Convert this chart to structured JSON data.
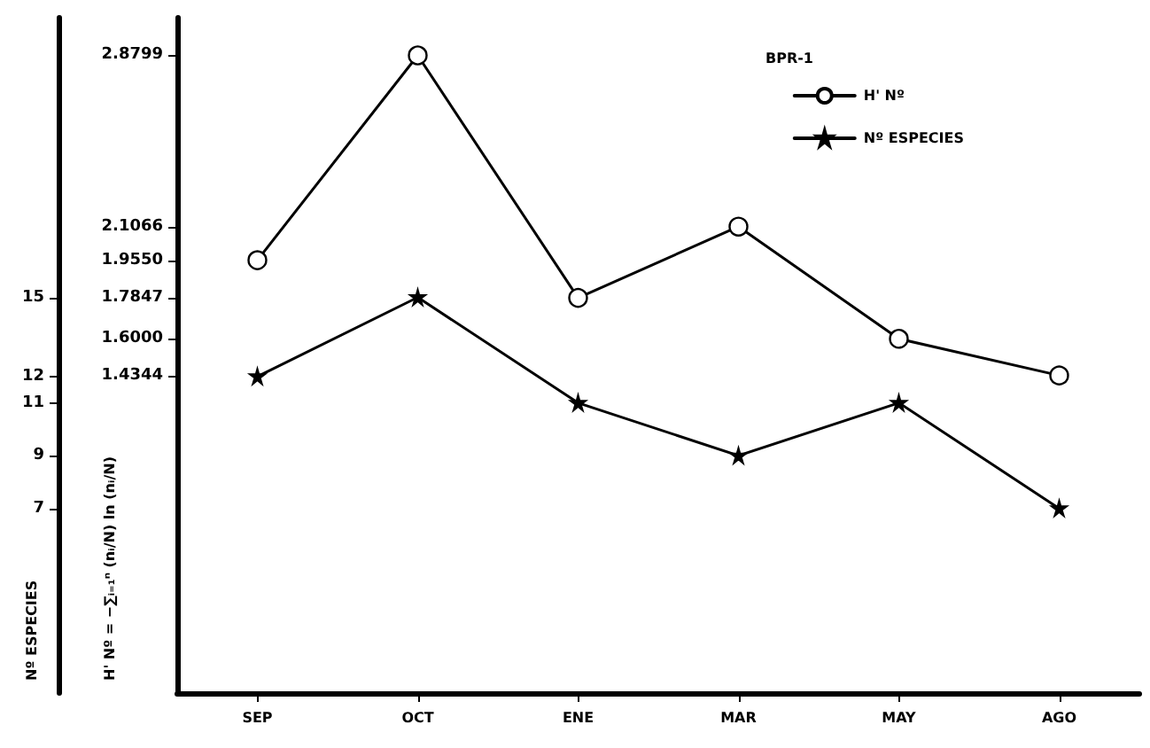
{
  "chart_data": {
    "type": "line",
    "categories": [
      "SEP",
      "OCT",
      "ENE",
      "MAR",
      "MAY",
      "AGO"
    ],
    "ylabel": "Nº ESPECIES",
    "y2label": "H' Nº = −∑ᵢ₌₁ⁿ (nᵢ/N) ln (nᵢ/N)",
    "legend_title": "BPR-1",
    "series": [
      {
        "name": "H' Nº",
        "color": "#000000",
        "axis": "y2",
        "marker": "circle",
        "values": [
          1.955,
          2.8799,
          1.7847,
          2.1066,
          1.6,
          1.4344
        ]
      },
      {
        "name": "Nº ESPECIES",
        "color": "#000000",
        "marker": "star",
        "values": [
          12,
          15,
          11,
          9,
          11,
          7
        ]
      }
    ],
    "ylim": [
      0,
      25.6
    ],
    "yticks": [
      7,
      9,
      11,
      12,
      15
    ],
    "y2lim": [
      0,
      3.05
    ],
    "y2ticks": [
      {
        "value": 1.4344,
        "label": "1.4344"
      },
      {
        "value": 1.6,
        "label": "1.6000"
      },
      {
        "value": 1.7847,
        "label": "1.7847"
      },
      {
        "value": 1.955,
        "label": "1.9550"
      },
      {
        "value": 2.1066,
        "label": "2.1066"
      },
      {
        "value": 2.8799,
        "label": "2.8799"
      }
    ],
    "grid": false,
    "legend": "top right",
    "line_style": "solid"
  }
}
